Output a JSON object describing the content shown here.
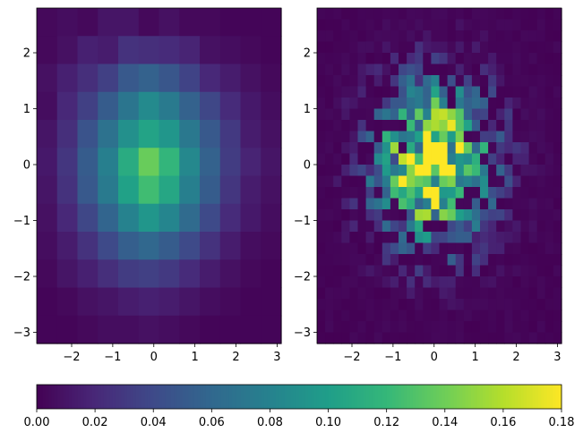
{
  "chart_data": [
    {
      "type": "heatmap",
      "title": "",
      "xlabel": "",
      "ylabel": "",
      "bins": [
        12,
        12
      ],
      "xlim": [
        -2.85,
        3.1
      ],
      "ylim": [
        -3.2,
        2.8
      ],
      "xticks": [
        -2,
        -1,
        0,
        1,
        2,
        3
      ],
      "xtick_labels": [
        "−2",
        "−1",
        "0",
        "1",
        "2",
        "3"
      ],
      "yticks": [
        -3,
        -2,
        -1,
        0,
        1,
        2
      ],
      "ytick_labels": [
        "−3",
        "−2",
        "−1",
        "0",
        "1",
        "2"
      ],
      "colormap": "viridis",
      "values": [
        [
          0.004,
          0.006,
          0.004,
          0.01,
          0.01,
          0.004,
          0.008,
          0.004,
          0.004,
          0.002,
          0.002,
          0.002
        ],
        [
          0.004,
          0.008,
          0.016,
          0.014,
          0.026,
          0.024,
          0.022,
          0.018,
          0.008,
          0.006,
          0.004,
          0.002
        ],
        [
          0.008,
          0.016,
          0.024,
          0.034,
          0.05,
          0.056,
          0.048,
          0.036,
          0.02,
          0.014,
          0.008,
          0.004
        ],
        [
          0.006,
          0.02,
          0.034,
          0.052,
          0.07,
          0.086,
          0.074,
          0.056,
          0.038,
          0.022,
          0.012,
          0.006
        ],
        [
          0.01,
          0.024,
          0.046,
          0.068,
          0.09,
          0.104,
          0.094,
          0.072,
          0.05,
          0.03,
          0.014,
          0.008
        ],
        [
          0.012,
          0.028,
          0.052,
          0.078,
          0.11,
          0.138,
          0.118,
          0.084,
          0.056,
          0.032,
          0.018,
          0.01
        ],
        [
          0.01,
          0.026,
          0.05,
          0.074,
          0.102,
          0.124,
          0.106,
          0.078,
          0.052,
          0.028,
          0.014,
          0.008
        ],
        [
          0.008,
          0.02,
          0.038,
          0.058,
          0.08,
          0.094,
          0.082,
          0.062,
          0.04,
          0.022,
          0.012,
          0.006
        ],
        [
          0.006,
          0.014,
          0.026,
          0.04,
          0.054,
          0.06,
          0.052,
          0.04,
          0.026,
          0.014,
          0.006,
          0.004
        ],
        [
          0.004,
          0.01,
          0.016,
          0.024,
          0.032,
          0.034,
          0.03,
          0.022,
          0.014,
          0.008,
          0.004,
          0.002
        ],
        [
          0.002,
          0.004,
          0.008,
          0.01,
          0.014,
          0.016,
          0.014,
          0.01,
          0.006,
          0.004,
          0.002,
          0.002
        ],
        [
          0.002,
          0.002,
          0.004,
          0.006,
          0.006,
          0.008,
          0.006,
          0.004,
          0.002,
          0.002,
          0.002,
          0.002
        ]
      ]
    },
    {
      "type": "heatmap",
      "title": "",
      "xlabel": "",
      "ylabel": "",
      "bins": [
        30,
        30
      ],
      "sigma": 1.0,
      "peak": 0.18,
      "xlim": [
        -2.85,
        3.1
      ],
      "ylim": [
        -3.2,
        2.8
      ],
      "xticks": [
        -2,
        -1,
        0,
        1,
        2,
        3
      ],
      "xtick_labels": [
        "−2",
        "−1",
        "0",
        "1",
        "2",
        "3"
      ],
      "yticks": [
        -3,
        -2,
        -1,
        0,
        1,
        2
      ],
      "ytick_labels": [
        "−3",
        "−2",
        "−1",
        "0",
        "1",
        "2"
      ],
      "colormap": "viridis"
    }
  ],
  "colorbar": {
    "vmin": 0.0,
    "vmax": 0.18,
    "ticks": [
      0.0,
      0.02,
      0.04,
      0.06,
      0.08,
      0.1,
      0.12,
      0.14,
      0.16,
      0.18
    ],
    "tick_labels": [
      "0.00",
      "0.02",
      "0.04",
      "0.06",
      "0.08",
      "0.10",
      "0.12",
      "0.14",
      "0.16",
      "0.18"
    ]
  }
}
